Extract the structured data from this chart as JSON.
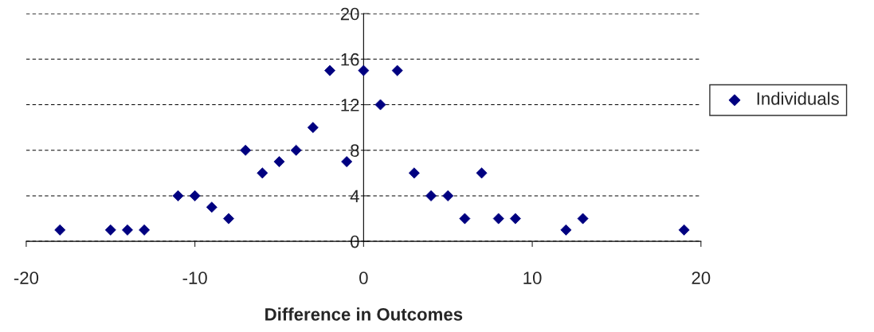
{
  "chart_data": {
    "type": "scatter",
    "xlabel": "Difference in Outcomes",
    "xlim": [
      -20,
      20
    ],
    "xticks": [
      -20,
      -10,
      0,
      10,
      20
    ],
    "ylim": [
      0,
      20
    ],
    "yticks": [
      0,
      4,
      8,
      12,
      16,
      20
    ],
    "grid": "y",
    "legend": "right",
    "marker": "diamond",
    "series": [
      {
        "name": "Individuals",
        "color": "#000080",
        "x": [
          -18,
          -15,
          -14,
          -13,
          -11,
          -10,
          -9,
          -8,
          -7,
          -6,
          -5,
          -4,
          -3,
          -2,
          -1,
          0,
          1,
          2,
          3,
          4,
          5,
          6,
          7,
          8,
          9,
          12,
          13,
          19
        ],
        "values": [
          1,
          1,
          1,
          1,
          4,
          4,
          3,
          2,
          8,
          6,
          7,
          8,
          10,
          15,
          7,
          15,
          12,
          15,
          6,
          4,
          4,
          2,
          6,
          2,
          2,
          1,
          2,
          1
        ]
      }
    ]
  }
}
